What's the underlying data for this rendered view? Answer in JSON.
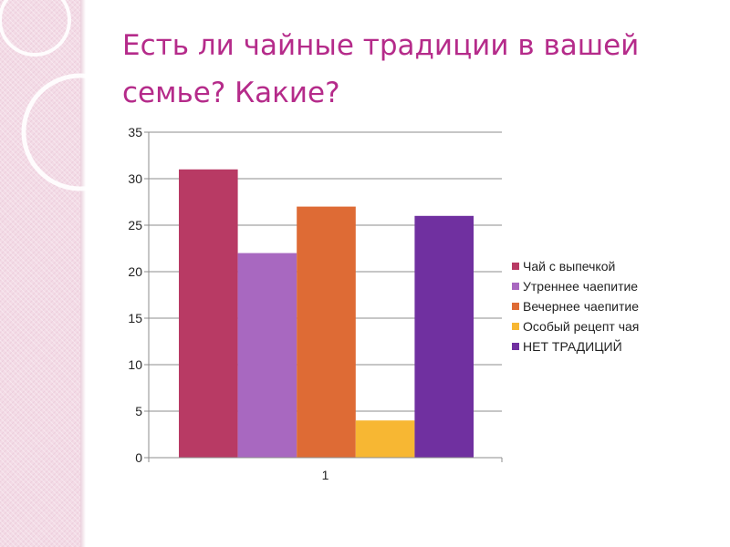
{
  "slide": {
    "title": "Есть ли чайные традиции в вашей семье? Какие?"
  },
  "chart_data": {
    "type": "bar",
    "categories": [
      "1"
    ],
    "series": [
      {
        "name": "Чай с выпечкой",
        "values": [
          31
        ],
        "color": "#b83a64"
      },
      {
        "name": "Утреннее чаепитие",
        "values": [
          22
        ],
        "color": "#a868c0"
      },
      {
        "name": "Вечернее чаепитие",
        "values": [
          27
        ],
        "color": "#de6b35"
      },
      {
        "name": "Особый рецепт чая",
        "values": [
          4
        ],
        "color": "#f7b733"
      },
      {
        "name": "НЕТ ТРАДИЦИЙ",
        "values": [
          26
        ],
        "color": "#7030a0"
      }
    ],
    "ylim": [
      0,
      35
    ],
    "yticks": [
      0,
      5,
      10,
      15,
      20,
      25,
      30,
      35
    ],
    "title": "",
    "xlabel": "",
    "ylabel": "",
    "grid": true,
    "legend": "right"
  }
}
